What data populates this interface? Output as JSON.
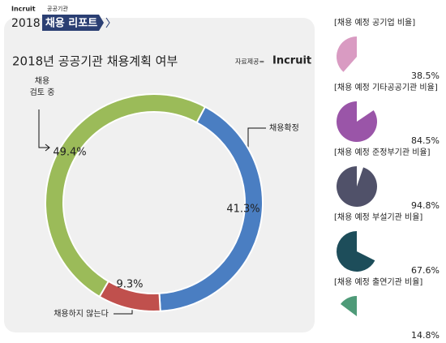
{
  "header": {
    "brand": "Incruit",
    "section": "공공기관",
    "year": "2018",
    "title": "채용 리포트"
  },
  "source": {
    "label": "자료제공=",
    "brand": "Incruit"
  },
  "chart_data": [
    {
      "type": "donut",
      "title": "2018년 공공기관 채용계획 여부",
      "categories": [
        "채용확정",
        "채용하지 않는다",
        "채용\n검토 중"
      ],
      "values": [
        41.3,
        9.3,
        49.4
      ],
      "value_labels": [
        "41.3%",
        "9.3%",
        "49.4%"
      ],
      "colors": [
        "#4a7ec2",
        "#c0504d",
        "#9bbb59"
      ]
    },
    {
      "type": "pie",
      "title": "[채용 예정 공기업 비율]",
      "values": [
        38.5
      ],
      "value_labels": [
        "38.5%"
      ],
      "color": "#d99bc2"
    },
    {
      "type": "pie",
      "title": "[채용 예정 기타공공기관 비율]",
      "values": [
        84.5
      ],
      "value_labels": [
        "84.5%"
      ],
      "color": "#9a55a8"
    },
    {
      "type": "pie",
      "title": "[채용 예정 준정부기관 비율]",
      "values": [
        94.8
      ],
      "value_labels": [
        "94.8%"
      ],
      "color": "#505169"
    },
    {
      "type": "pie",
      "title": "[채용 예정 부설기관 비율]",
      "values": [
        67.6
      ],
      "value_labels": [
        "67.6%"
      ],
      "color": "#1d4d5a"
    },
    {
      "type": "pie",
      "title": "[채용 예정 출연기관 비율]",
      "values": [
        14.8
      ],
      "value_labels": [
        "14.8%"
      ],
      "color": "#4e9a78"
    }
  ]
}
